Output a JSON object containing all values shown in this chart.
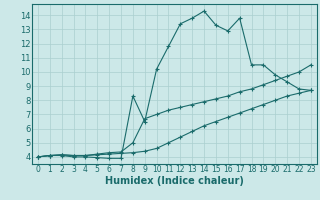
{
  "xlabel": "Humidex (Indice chaleur)",
  "bg_color": "#cce8e8",
  "line_color": "#1a6b6b",
  "grid_color": "#aacfcf",
  "xlim": [
    -0.5,
    23.5
  ],
  "ylim": [
    3.5,
    14.8
  ],
  "xticks": [
    0,
    1,
    2,
    3,
    4,
    5,
    6,
    7,
    8,
    9,
    10,
    11,
    12,
    13,
    14,
    15,
    16,
    17,
    18,
    19,
    20,
    21,
    22,
    23
  ],
  "yticks": [
    4,
    5,
    6,
    7,
    8,
    9,
    10,
    11,
    12,
    13,
    14
  ],
  "line1": {
    "x": [
      0,
      1,
      2,
      3,
      4,
      5,
      6,
      7,
      8,
      9,
      10,
      11,
      12,
      13,
      14,
      15,
      16,
      17,
      18,
      19,
      20,
      21,
      22,
      23
    ],
    "y": [
      4.0,
      4.1,
      4.1,
      4.0,
      4.0,
      3.95,
      3.9,
      3.9,
      8.3,
      6.5,
      10.2,
      11.8,
      13.4,
      13.8,
      14.3,
      13.3,
      12.9,
      13.8,
      10.5,
      10.5,
      9.8,
      9.3,
      8.8,
      8.7
    ]
  },
  "line2": {
    "x": [
      0,
      1,
      2,
      3,
      4,
      5,
      6,
      7,
      8,
      9,
      10,
      11,
      12,
      13,
      14,
      15,
      16,
      17,
      18,
      19,
      20,
      21,
      22,
      23
    ],
    "y": [
      4.0,
      4.1,
      4.15,
      4.1,
      4.1,
      4.2,
      4.3,
      4.35,
      5.0,
      6.7,
      7.0,
      7.3,
      7.5,
      7.7,
      7.9,
      8.1,
      8.3,
      8.6,
      8.8,
      9.1,
      9.4,
      9.7,
      10.0,
      10.5
    ]
  },
  "line3": {
    "x": [
      0,
      1,
      2,
      3,
      4,
      5,
      6,
      7,
      8,
      9,
      10,
      11,
      12,
      13,
      14,
      15,
      16,
      17,
      18,
      19,
      20,
      21,
      22,
      23
    ],
    "y": [
      4.0,
      4.1,
      4.15,
      4.1,
      4.1,
      4.15,
      4.2,
      4.25,
      4.3,
      4.4,
      4.6,
      5.0,
      5.4,
      5.8,
      6.2,
      6.5,
      6.8,
      7.1,
      7.4,
      7.7,
      8.0,
      8.3,
      8.5,
      8.7
    ]
  }
}
